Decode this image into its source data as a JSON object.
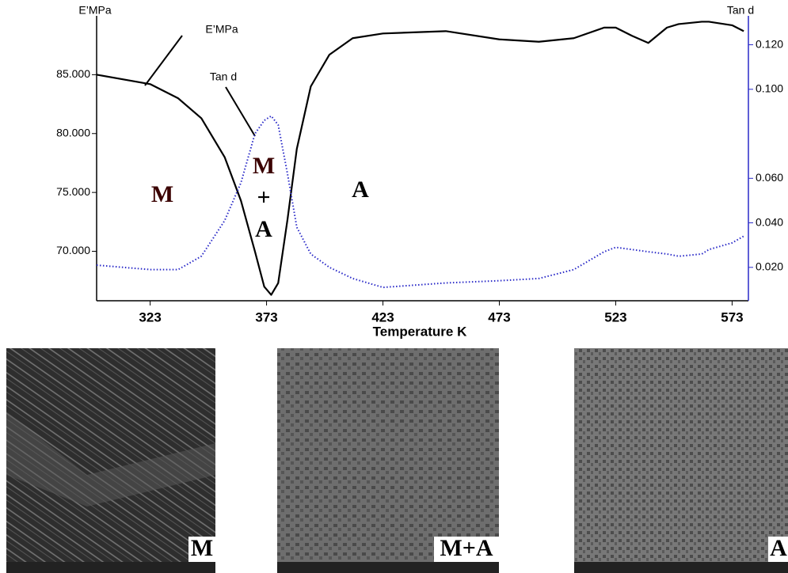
{
  "chart_data": {
    "type": "line",
    "y_label": "E’MPa",
    "y2_label": "Tan d",
    "x_label": "Temperature K",
    "x": [
      300,
      323,
      335,
      345,
      355,
      362,
      368,
      372,
      375,
      378,
      382,
      386,
      392,
      400,
      410,
      423,
      450,
      473,
      490,
      505,
      518,
      523,
      530,
      537,
      545,
      550,
      560,
      563,
      573,
      578
    ],
    "series": [
      {
        "name": "E’MPa",
        "color": "#000000",
        "values": [
          85.0,
          84.2,
          83.0,
          81.3,
          78.0,
          74.3,
          70.0,
          67.0,
          66.3,
          67.3,
          72.7,
          78.7,
          84.0,
          86.7,
          88.1,
          88.5,
          88.7,
          88.0,
          87.8,
          88.1,
          89.0,
          89.0,
          88.3,
          87.7,
          89.0,
          89.3,
          89.5,
          89.5,
          89.2,
          88.7
        ]
      },
      {
        "name": "Tan d",
        "color": "#2a2ac8",
        "axis": "y2",
        "values": [
          0.021,
          0.019,
          0.019,
          0.025,
          0.041,
          0.058,
          0.08,
          0.086,
          0.088,
          0.084,
          0.062,
          0.038,
          0.026,
          0.02,
          0.015,
          0.011,
          0.013,
          0.014,
          0.015,
          0.019,
          0.027,
          0.029,
          0.028,
          0.027,
          0.026,
          0.025,
          0.026,
          0.028,
          0.031,
          0.034
        ]
      }
    ],
    "xlim": [
      300,
      580
    ],
    "xticks": [
      323,
      373,
      423,
      473,
      523,
      573
    ],
    "ylim": [
      65.8,
      90
    ],
    "yticks": [
      {
        "value": 70,
        "label": "70.000"
      },
      {
        "value": 75,
        "label": "75.000"
      },
      {
        "value": 80,
        "label": "80.000"
      },
      {
        "value": 85,
        "label": "85.000"
      }
    ],
    "y2lim": [
      0.005,
      0.133
    ],
    "y2ticks": [
      {
        "value": 0.02,
        "label": "0.020"
      },
      {
        "value": 0.04,
        "label": "0.040"
      },
      {
        "value": 0.06,
        "label": "0.060"
      },
      {
        "value": 0.1,
        "label": "0.100"
      },
      {
        "value": 0.12,
        "label": "0.120"
      }
    ],
    "annotations": [
      "M",
      "M",
      "+",
      "A",
      "A"
    ]
  },
  "micrographs": [
    {
      "label": "M"
    },
    {
      "label": "M+A"
    },
    {
      "label": "A"
    }
  ]
}
